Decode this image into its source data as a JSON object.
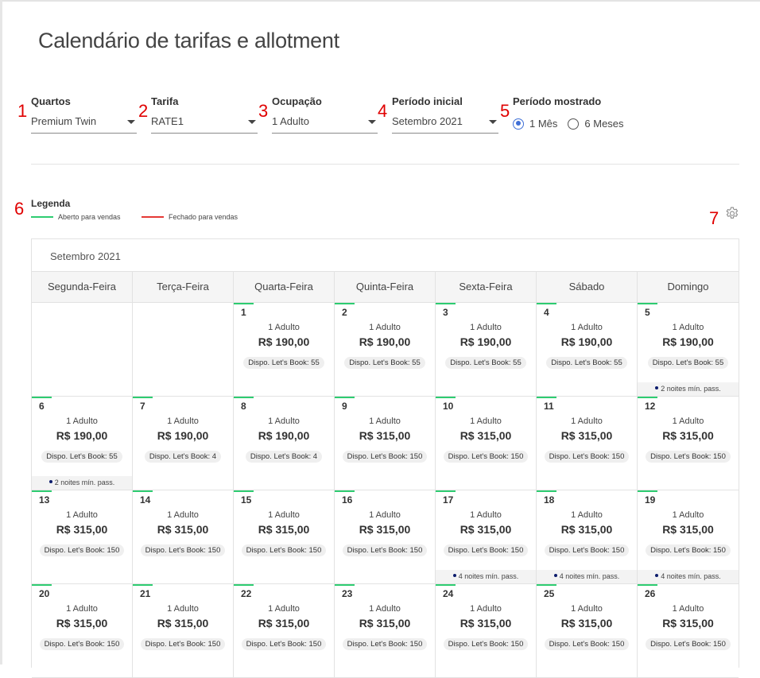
{
  "page": {
    "title": "Calendário de tarifas e allotment"
  },
  "annotations": [
    "1",
    "2",
    "3",
    "4",
    "5",
    "6",
    "7"
  ],
  "filters": {
    "rooms": {
      "label": "Quartos",
      "value": "Premium Twin"
    },
    "rate": {
      "label": "Tarifa",
      "value": "RATE1"
    },
    "occupancy": {
      "label": "Ocupação",
      "value": "1 Adulto"
    },
    "start_period": {
      "label": "Período inicial",
      "value": "Setembro 2021"
    },
    "shown_period": {
      "label": "Período mostrado",
      "options": [
        "1 Mês",
        "6 Meses"
      ],
      "selected": "1 Mês"
    }
  },
  "legend": {
    "title": "Legenda",
    "items": [
      {
        "label": "Aberto para vendas",
        "color": "#2ecc71"
      },
      {
        "label": "Fechado para vendas",
        "color": "#e53935"
      }
    ]
  },
  "settings_icon": "gear-icon",
  "calendar": {
    "month": "Setembro 2021",
    "weekdays": [
      "Segunda-Feira",
      "Terça-Feira",
      "Quarta-Feira",
      "Quinta-Feira",
      "Sexta-Feira",
      "Sábado",
      "Domingo"
    ],
    "weeks": [
      [
        null,
        null,
        {
          "day": "1",
          "occupancy": "1 Adulto",
          "price": "R$ 190,00",
          "availability": "Dispo. Let's Book: 55"
        },
        {
          "day": "2",
          "occupancy": "1 Adulto",
          "price": "R$ 190,00",
          "availability": "Dispo. Let's Book: 55"
        },
        {
          "day": "3",
          "occupancy": "1 Adulto",
          "price": "R$ 190,00",
          "availability": "Dispo. Let's Book: 55"
        },
        {
          "day": "4",
          "occupancy": "1 Adulto",
          "price": "R$ 190,00",
          "availability": "Dispo. Let's Book: 55"
        },
        {
          "day": "5",
          "occupancy": "1 Adulto",
          "price": "R$ 190,00",
          "availability": "Dispo. Let's Book: 55",
          "min_stay": "2 noites mín. pass."
        }
      ],
      [
        {
          "day": "6",
          "occupancy": "1 Adulto",
          "price": "R$ 190,00",
          "availability": "Dispo. Let's Book: 55",
          "min_stay": "2 noites mín. pass."
        },
        {
          "day": "7",
          "occupancy": "1 Adulto",
          "price": "R$ 190,00",
          "availability": "Dispo. Let's Book: 4"
        },
        {
          "day": "8",
          "occupancy": "1 Adulto",
          "price": "R$ 190,00",
          "availability": "Dispo. Let's Book: 4"
        },
        {
          "day": "9",
          "occupancy": "1 Adulto",
          "price": "R$ 315,00",
          "availability": "Dispo. Let's Book: 150"
        },
        {
          "day": "10",
          "occupancy": "1 Adulto",
          "price": "R$ 315,00",
          "availability": "Dispo. Let's Book: 150"
        },
        {
          "day": "11",
          "occupancy": "1 Adulto",
          "price": "R$ 315,00",
          "availability": "Dispo. Let's Book: 150"
        },
        {
          "day": "12",
          "occupancy": "1 Adulto",
          "price": "R$ 315,00",
          "availability": "Dispo. Let's Book: 150"
        }
      ],
      [
        {
          "day": "13",
          "occupancy": "1 Adulto",
          "price": "R$ 315,00",
          "availability": "Dispo. Let's Book: 150"
        },
        {
          "day": "14",
          "occupancy": "1 Adulto",
          "price": "R$ 315,00",
          "availability": "Dispo. Let's Book: 150"
        },
        {
          "day": "15",
          "occupancy": "1 Adulto",
          "price": "R$ 315,00",
          "availability": "Dispo. Let's Book: 150"
        },
        {
          "day": "16",
          "occupancy": "1 Adulto",
          "price": "R$ 315,00",
          "availability": "Dispo. Let's Book: 150"
        },
        {
          "day": "17",
          "occupancy": "1 Adulto",
          "price": "R$ 315,00",
          "availability": "Dispo. Let's Book: 150",
          "min_stay": "4 noites mín. pass."
        },
        {
          "day": "18",
          "occupancy": "1 Adulto",
          "price": "R$ 315,00",
          "availability": "Dispo. Let's Book: 150",
          "min_stay": "4 noites mín. pass."
        },
        {
          "day": "19",
          "occupancy": "1 Adulto",
          "price": "R$ 315,00",
          "availability": "Dispo. Let's Book: 150",
          "min_stay": "4 noites mín. pass."
        }
      ],
      [
        {
          "day": "20",
          "occupancy": "1 Adulto",
          "price": "R$ 315,00",
          "availability": "Dispo. Let's Book: 150"
        },
        {
          "day": "21",
          "occupancy": "1 Adulto",
          "price": "R$ 315,00",
          "availability": "Dispo. Let's Book: 150"
        },
        {
          "day": "22",
          "occupancy": "1 Adulto",
          "price": "R$ 315,00",
          "availability": "Dispo. Let's Book: 150"
        },
        {
          "day": "23",
          "occupancy": "1 Adulto",
          "price": "R$ 315,00",
          "availability": "Dispo. Let's Book: 150"
        },
        {
          "day": "24",
          "occupancy": "1 Adulto",
          "price": "R$ 315,00",
          "availability": "Dispo. Let's Book: 150"
        },
        {
          "day": "25",
          "occupancy": "1 Adulto",
          "price": "R$ 315,00",
          "availability": "Dispo. Let's Book: 150"
        },
        {
          "day": "26",
          "occupancy": "1 Adulto",
          "price": "R$ 315,00",
          "availability": "Dispo. Let's Book: 150"
        }
      ]
    ]
  }
}
